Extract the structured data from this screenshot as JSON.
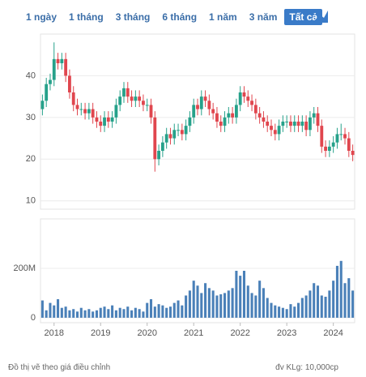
{
  "toolbar": {
    "ranges": [
      "1 ngày",
      "1 tháng",
      "3 tháng",
      "6 tháng",
      "1 năm",
      "3 năm",
      "Tất cả"
    ],
    "active": 6
  },
  "chart_data": [
    {
      "type": "candlestick",
      "up_color": "#26a18a",
      "down_color": "#e0464e",
      "ylim": [
        8,
        50
      ],
      "yticks": [
        10,
        20,
        30,
        40
      ],
      "grid": true,
      "open": [
        32,
        34,
        38,
        39,
        44,
        43,
        44,
        40,
        36,
        33,
        32,
        32,
        31,
        32,
        30,
        29,
        28,
        30,
        29,
        30,
        33,
        35,
        37,
        35,
        34,
        35,
        34,
        33,
        33,
        30,
        20,
        22,
        24,
        26,
        25,
        27,
        27,
        26,
        28,
        30,
        33,
        32,
        35,
        34,
        32,
        31,
        29,
        28,
        30,
        31,
        30,
        33,
        36,
        35,
        34,
        33,
        31,
        30,
        29,
        28,
        27,
        26,
        28,
        29,
        29,
        28,
        29,
        28,
        29,
        27,
        30,
        31,
        28,
        23,
        22,
        23,
        24,
        26,
        26,
        25,
        22
      ],
      "high": [
        35.5,
        39.5,
        40.5,
        48,
        45.5,
        45.5,
        45.5,
        41.5,
        37.5,
        34.5,
        33.5,
        33.5,
        33.5,
        33.5,
        31.5,
        30.5,
        31.5,
        31.5,
        31.5,
        34.5,
        36.5,
        38.5,
        38.5,
        36.5,
        36.5,
        36.5,
        35.5,
        34.5,
        34.5,
        31.5,
        23.5,
        25.5,
        27.5,
        27.5,
        28.5,
        28.5,
        28.5,
        29.5,
        31.5,
        34.5,
        34.5,
        36.5,
        36.5,
        35.5,
        33.5,
        32.5,
        30.5,
        31.5,
        32.5,
        32.5,
        34.5,
        37.5,
        37.5,
        36.5,
        35.5,
        34.5,
        32.5,
        31.5,
        30.5,
        29.5,
        28.5,
        29.5,
        30.5,
        30.5,
        30.5,
        30.5,
        30.5,
        30.5,
        30.5,
        31.5,
        32.5,
        32.5,
        29.5,
        24.5,
        24.5,
        25.5,
        27.5,
        28.5,
        27.5,
        26.5,
        23.5
      ],
      "low": [
        30.5,
        32.5,
        36.5,
        37.5,
        41.5,
        41.5,
        38.5,
        34.5,
        31.5,
        30.5,
        30.5,
        29.5,
        29.5,
        28.5,
        27.5,
        26.5,
        26.5,
        27.5,
        27.5,
        28.5,
        31.5,
        33.5,
        33.5,
        32.5,
        32.5,
        32.5,
        31.5,
        31.5,
        28.5,
        17,
        18.5,
        20.5,
        22.5,
        23.5,
        23.5,
        25.5,
        24.5,
        24.5,
        26.5,
        28.5,
        30.5,
        30.5,
        32.5,
        30.5,
        29.5,
        27.5,
        26.5,
        26.5,
        28.5,
        28.5,
        28.5,
        31.5,
        33.5,
        32.5,
        31.5,
        29.5,
        28.5,
        27.5,
        26.5,
        25.5,
        24.5,
        24.5,
        26.5,
        27.5,
        26.5,
        26.5,
        26.5,
        26.5,
        25.5,
        25.5,
        28.5,
        26.5,
        21.5,
        20.5,
        20.5,
        21.5,
        22.5,
        24.5,
        23.5,
        20.5,
        19.5
      ],
      "close": [
        34,
        38,
        39,
        44,
        43,
        44,
        40,
        36,
        33,
        32,
        32,
        31,
        32,
        30,
        29,
        28,
        30,
        29,
        30,
        33,
        35,
        37,
        35,
        34,
        35,
        34,
        33,
        33,
        30,
        20,
        22,
        24,
        26,
        25,
        27,
        27,
        26,
        28,
        30,
        33,
        32,
        35,
        34,
        32,
        31,
        29,
        28,
        30,
        31,
        30,
        33,
        36,
        35,
        34,
        33,
        31,
        30,
        29,
        28,
        27,
        26,
        28,
        29,
        29,
        28,
        29,
        28,
        29,
        27,
        30,
        31,
        28,
        23,
        22,
        23,
        24,
        26,
        26,
        25,
        22,
        21
      ]
    },
    {
      "type": "bar",
      "color": "#4a80b8",
      "ylim": [
        -20000000,
        400000000
      ],
      "yticks": [
        0,
        {
          "value": 200000000,
          "label": "200M"
        }
      ],
      "grid": true,
      "categories": [
        null,
        null,
        null,
        "2018",
        null,
        null,
        null,
        null,
        null,
        null,
        null,
        null,
        null,
        null,
        null,
        "2019",
        null,
        null,
        null,
        null,
        null,
        null,
        null,
        null,
        null,
        null,
        null,
        "2020",
        null,
        null,
        null,
        null,
        null,
        null,
        null,
        null,
        null,
        null,
        null,
        "2021",
        null,
        null,
        null,
        null,
        null,
        null,
        null,
        null,
        null,
        null,
        null,
        "2022",
        null,
        null,
        null,
        null,
        null,
        null,
        null,
        null,
        null,
        null,
        null,
        "2023",
        null,
        null,
        null,
        null,
        null,
        null,
        null,
        null,
        null,
        null,
        null,
        "2024",
        null,
        null,
        null,
        null,
        null
      ],
      "values": [
        70000000,
        30000000,
        60000000,
        50000000,
        75000000,
        40000000,
        45000000,
        30000000,
        35000000,
        25000000,
        40000000,
        30000000,
        35000000,
        25000000,
        30000000,
        40000000,
        45000000,
        35000000,
        50000000,
        30000000,
        40000000,
        35000000,
        45000000,
        30000000,
        40000000,
        35000000,
        25000000,
        60000000,
        75000000,
        45000000,
        55000000,
        50000000,
        40000000,
        45000000,
        60000000,
        70000000,
        50000000,
        90000000,
        110000000,
        150000000,
        130000000,
        100000000,
        140000000,
        120000000,
        110000000,
        90000000,
        95000000,
        100000000,
        110000000,
        120000000,
        190000000,
        170000000,
        190000000,
        130000000,
        100000000,
        90000000,
        150000000,
        120000000,
        80000000,
        60000000,
        50000000,
        45000000,
        40000000,
        35000000,
        55000000,
        45000000,
        60000000,
        80000000,
        90000000,
        110000000,
        140000000,
        130000000,
        90000000,
        85000000,
        110000000,
        150000000,
        210000000,
        230000000,
        140000000,
        160000000,
        110000000
      ]
    }
  ],
  "footer": {
    "note": "Đồ thị vẽ theo giá điều chỉnh",
    "unit": "đv KLg: 10,000cp"
  }
}
